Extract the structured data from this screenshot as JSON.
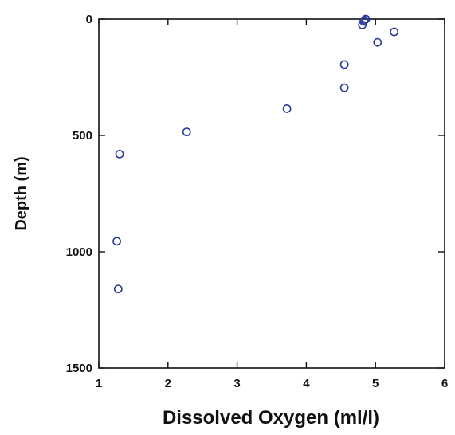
{
  "chart_data": {
    "type": "scatter",
    "xlabel": "Dissolved Oxygen (ml/l)",
    "ylabel": "Depth (m)",
    "xlim": [
      1,
      6
    ],
    "ylim": [
      0,
      1500
    ],
    "y_inverted": true,
    "x_ticks": [
      1,
      2,
      3,
      4,
      5,
      6
    ],
    "y_ticks": [
      0,
      500,
      1000,
      1500
    ],
    "x_tick_labels": [
      "1",
      "2",
      "3",
      "4",
      "5",
      "6"
    ],
    "y_tick_labels": [
      "0",
      "500",
      "1000",
      "1500"
    ],
    "grid": false,
    "marker": "open-circle",
    "series_color": "#2a3a9a",
    "points": [
      {
        "x": 4.86,
        "y": 0
      },
      {
        "x": 4.84,
        "y": 5
      },
      {
        "x": 4.83,
        "y": 10
      },
      {
        "x": 4.81,
        "y": 25
      },
      {
        "x": 5.27,
        "y": 55
      },
      {
        "x": 5.03,
        "y": 100
      },
      {
        "x": 4.55,
        "y": 195
      },
      {
        "x": 4.55,
        "y": 295
      },
      {
        "x": 3.72,
        "y": 385
      },
      {
        "x": 2.27,
        "y": 485
      },
      {
        "x": 1.3,
        "y": 580
      },
      {
        "x": 1.26,
        "y": 955
      },
      {
        "x": 1.28,
        "y": 1160
      }
    ]
  }
}
